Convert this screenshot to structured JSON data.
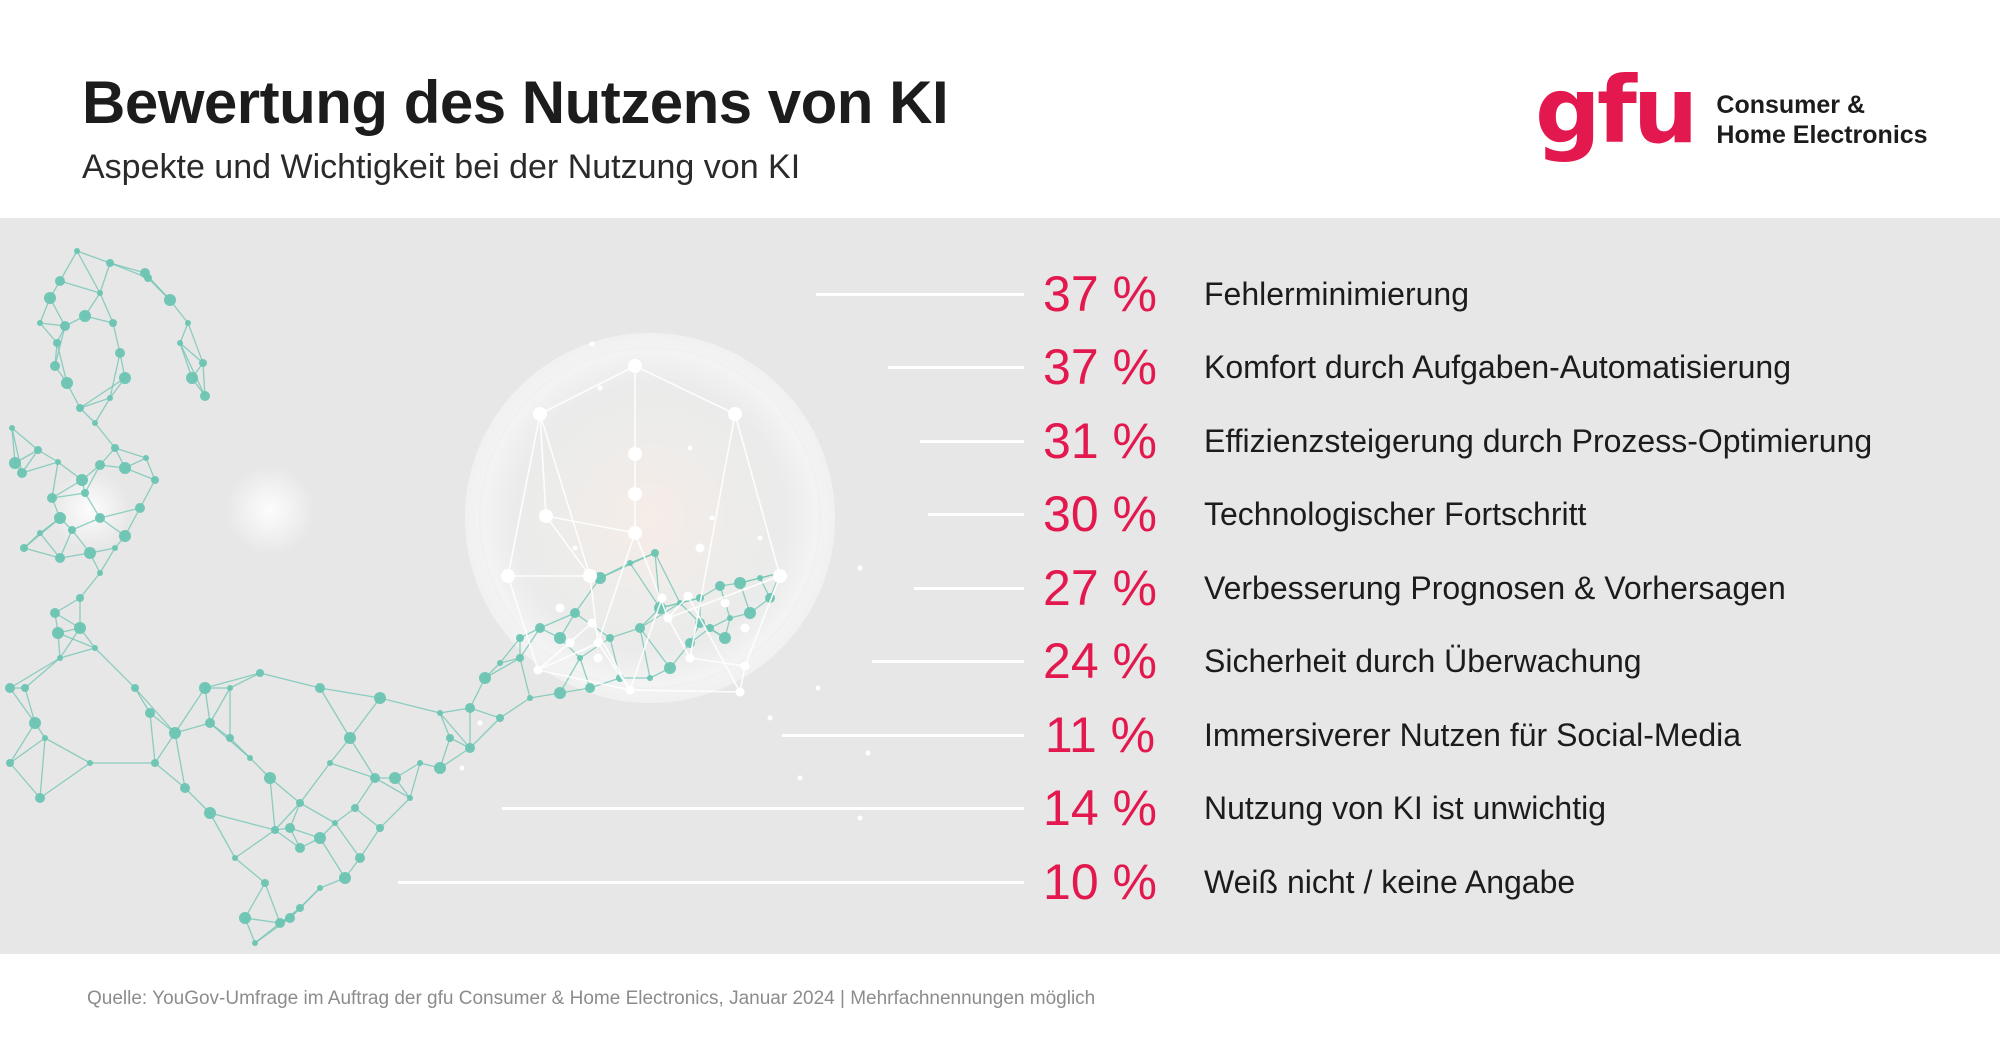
{
  "header": {
    "title": "Bewertung des Nutzens von KI",
    "subtitle": "Aspekte und Wichtigkeit bei der Nutzung von KI"
  },
  "logo": {
    "mark": "gfu",
    "line1": "Consumer &",
    "line2": "Home Electronics",
    "brand_color": "#e3184e"
  },
  "colors": {
    "accent": "#e3184e",
    "panel_background": "#e6e7e6",
    "network_teal": "#6cc4b2",
    "leader_lines": "#ffffff"
  },
  "chart_data": {
    "type": "table",
    "title": "Bewertung des Nutzens von KI",
    "subtitle": "Aspekte und Wichtigkeit bei der Nutzung von KI",
    "unit": "%",
    "categories": [
      "Fehlerminimierung",
      "Komfort durch Aufgaben-Automatisierung",
      "Effizienzsteigerung durch Prozess-Optimierung",
      "Technologischer Fortschritt",
      "Verbesserung Prognosen & Vorhersagen",
      "Sicherheit durch Überwachung",
      "Immersiverer Nutzen für Social-Media",
      "Nutzung von KI ist unwichtig",
      "Weiß nicht / keine Angabe"
    ],
    "values": [
      37,
      37,
      31,
      30,
      27,
      24,
      11,
      14,
      10
    ],
    "value_labels": [
      "37 %",
      "37 %",
      "31 %",
      "30 %",
      "27 %",
      "24 %",
      "11 %",
      "14 %",
      "10 %"
    ]
  },
  "footer": {
    "source": "Quelle:  YouGov-Umfrage im Auftrag der gfu Consumer & Home Electronics, Januar 2024 | Mehrfachnennungen möglich"
  }
}
